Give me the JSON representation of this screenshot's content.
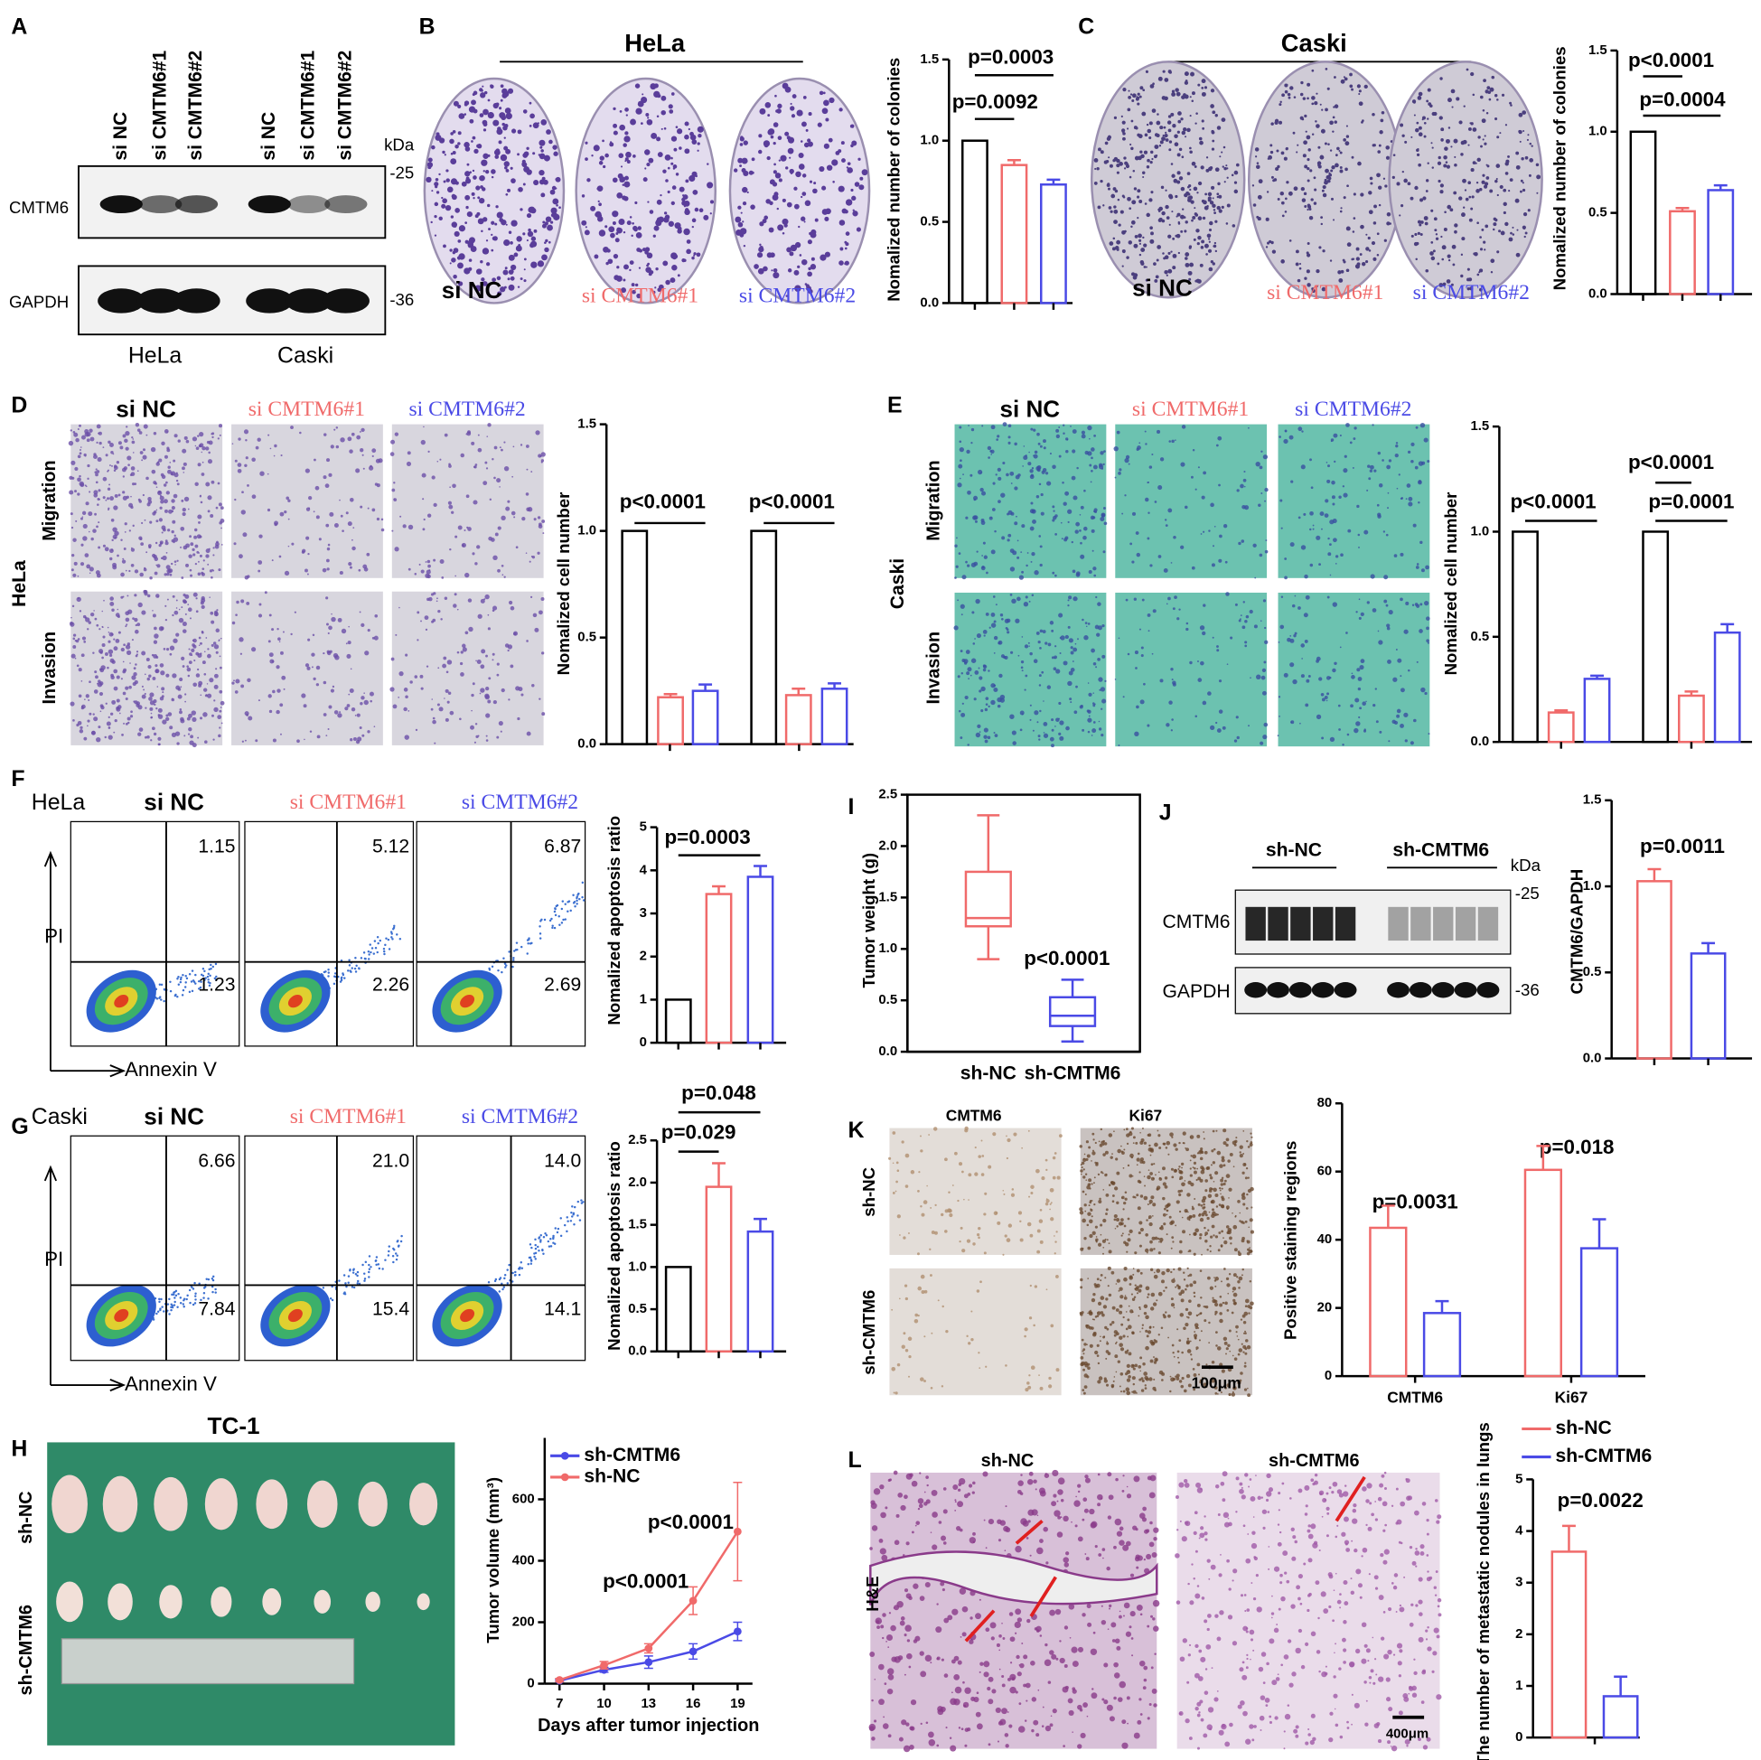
{
  "chart_data": [
    {
      "type": "bar",
      "values": [
        1.0,
        0.85,
        0.73
      ],
      "errors": [
        null,
        0.03,
        0.03
      ],
      "colors": [
        "#000000",
        "#f06a6a",
        "#4a4ae6"
      ],
      "ylim": [
        0,
        1.5
      ],
      "yticks": [
        {
          "value": 0,
          "label": "0.0"
        },
        0.5,
        {
          "value": 1,
          "label": "1.0"
        },
        1.5
      ],
      "ylabel": "Nomalized number of colonies",
      "annotations": [
        "p=0.0003",
        "p=0.0092"
      ]
    },
    {
      "type": "bar",
      "values": [
        1.0,
        0.51,
        0.64
      ],
      "errors": [
        null,
        0.02,
        0.03
      ],
      "colors": [
        "#000000",
        "#f06a6a",
        "#4a4ae6"
      ],
      "ylim": [
        0,
        1.5
      ],
      "yticks": [
        {
          "value": 0,
          "label": "0.0"
        },
        0.5,
        {
          "value": 1,
          "label": "1.0"
        },
        1.5
      ],
      "ylabel": "Nomalized number of colonies",
      "annotations": [
        "p<0.0001",
        "p=0.0004"
      ]
    },
    {
      "type": "bar",
      "series": [
        {
          "color": "#000000",
          "values": [
            1.0,
            1.0
          ],
          "errors": [
            null,
            null
          ]
        },
        {
          "color": "#f06a6a",
          "values": [
            0.22,
            0.23
          ],
          "errors": [
            0.015,
            0.03
          ]
        },
        {
          "color": "#4a4ae6",
          "values": [
            0.25,
            0.26
          ],
          "errors": [
            0.03,
            0.025
          ]
        }
      ],
      "ylim": [
        0,
        1.5
      ],
      "yticks": [
        {
          "value": 0,
          "label": "0.0"
        },
        0.5,
        {
          "value": 1,
          "label": "1.0"
        },
        1.5
      ],
      "ylabel": "Nomalized cell number",
      "annotations": [
        "p<0.0001",
        "p<0.0001"
      ]
    },
    {
      "type": "bar",
      "series": [
        {
          "color": "#000000",
          "values": [
            1.0,
            1.0
          ],
          "errors": [
            null,
            null
          ]
        },
        {
          "color": "#f06a6a",
          "values": [
            0.14,
            0.22
          ],
          "errors": [
            0.01,
            0.02
          ]
        },
        {
          "color": "#4a4ae6",
          "values": [
            0.3,
            0.52
          ],
          "errors": [
            0.015,
            0.04
          ]
        }
      ],
      "ylim": [
        0,
        1.5
      ],
      "yticks": [
        {
          "value": 0,
          "label": "0.0"
        },
        0.5,
        {
          "value": 1,
          "label": "1.0"
        },
        1.5
      ],
      "ylabel": "Nomalized cell number",
      "annotations": [
        "p<0.0001",
        "p<0.0001",
        "p=0.0001"
      ]
    },
    {
      "type": "bar",
      "values": [
        1.0,
        3.45,
        3.85
      ],
      "errors": [
        null,
        0.18,
        0.25
      ],
      "colors": [
        "#000000",
        "#f06a6a",
        "#4a4ae6"
      ],
      "ylim": [
        0,
        5
      ],
      "yticks": [
        0,
        1,
        2,
        3,
        4,
        5
      ],
      "ylabel": "Nomalized apoptosis ratio",
      "annotations": [
        "p=0.0003"
      ]
    },
    {
      "type": "bar",
      "values": [
        1.0,
        1.95,
        1.42
      ],
      "errors": [
        null,
        0.28,
        0.15
      ],
      "colors": [
        "#000000",
        "#f06a6a",
        "#4a4ae6"
      ],
      "ylim": [
        0,
        2.5
      ],
      "yticks": [
        {
          "value": 0,
          "label": "0.0"
        },
        0.5,
        {
          "value": 1,
          "label": "1.0"
        },
        1.5,
        {
          "value": 2,
          "label": "2.0"
        },
        2.5
      ],
      "ylabel": "Nomalized apoptosis ratio",
      "annotations": [
        "p=0.048",
        "p=0.029"
      ]
    },
    {
      "type": "box",
      "categories": [
        "sh-NC",
        "sh-CMTM6"
      ],
      "boxes": [
        {
          "color": "#f06a6a",
          "min": 0.9,
          "q1": 1.22,
          "median": 1.3,
          "q3": 1.75,
          "max": 2.3
        },
        {
          "color": "#4a4ae6",
          "min": 0.1,
          "q1": 0.25,
          "median": 0.35,
          "q3": 0.53,
          "max": 0.7
        }
      ],
      "ylim": [
        0,
        2.5
      ],
      "yticks": [
        {
          "value": 0,
          "label": "0.0"
        },
        0.5,
        {
          "value": 1,
          "label": "1.0"
        },
        1.5,
        {
          "value": 2,
          "label": "2.0"
        },
        2.5
      ],
      "ylabel": "Tumor weight (g)",
      "annotations": [
        "p<0.0001"
      ]
    },
    {
      "type": "bar",
      "values": [
        1.03,
        0.61
      ],
      "errors": [
        0.07,
        0.06
      ],
      "colors": [
        "#f06a6a",
        "#4a4ae6"
      ],
      "ylim": [
        0,
        1.5
      ],
      "yticks": [
        {
          "value": 0,
          "label": "0.0"
        },
        0.5,
        {
          "value": 1,
          "label": "1.0"
        },
        1.5
      ],
      "ylabel": "CMTM6/GAPDH",
      "annotations": [
        "p=0.0011"
      ]
    },
    {
      "type": "bar",
      "categories": [
        "CMTM6",
        "Ki67"
      ],
      "series": [
        {
          "color": "#f06a6a",
          "values": [
            43.5,
            60.5
          ],
          "errors": [
            6.5,
            7
          ]
        },
        {
          "color": "#4a4ae6",
          "values": [
            18.5,
            37.5
          ],
          "errors": [
            3.5,
            8.5
          ]
        }
      ],
      "ylim": [
        0,
        80
      ],
      "yticks": [
        0,
        20,
        40,
        60,
        80
      ],
      "ylabel": "Positive staining regions",
      "annotations": [
        "p=0.0031",
        "p=0.018"
      ]
    },
    {
      "type": "line",
      "x": [
        7,
        10,
        13,
        16,
        19
      ],
      "series": [
        {
          "name": "sh-CMTM6",
          "color": "#4a4ae6",
          "values": [
            10,
            45,
            70,
            105,
            170
          ],
          "errors": [
            3,
            8,
            20,
            25,
            30
          ]
        },
        {
          "name": "sh-NC",
          "color": "#f06a6a",
          "values": [
            12,
            60,
            115,
            270,
            495
          ],
          "errors": [
            5,
            12,
            15,
            45,
            160
          ]
        }
      ],
      "xlim": [
        6,
        20
      ],
      "xticks": [
        7,
        10,
        13,
        16,
        19
      ],
      "ylim": [
        0,
        800
      ],
      "yticks": [
        0,
        200,
        400,
        600
      ],
      "xlabel": "Days after tumor injection",
      "ylabel": "Tumor volume (mm³)",
      "legend": true,
      "annotations": [
        "p<0.0001",
        "p<0.0001"
      ]
    },
    {
      "type": "bar",
      "series": [
        {
          "name": "sh-NC",
          "color": "#f06a6a",
          "values": [
            3.6
          ],
          "errors": [
            0.5
          ]
        },
        {
          "name": "sh-CMTM6",
          "color": "#4a4ae6",
          "values": [
            0.8
          ],
          "errors": [
            0.38
          ]
        }
      ],
      "ylim": [
        0,
        5
      ],
      "yticks": [
        0,
        1,
        2,
        3,
        4,
        5
      ],
      "ylabel": "The number of metastatic nodules in lungs",
      "legend": true,
      "annotations": [
        "p=0.0022"
      ]
    }
  ],
  "figure": {
    "panels": [
      "A",
      "B",
      "C",
      "D",
      "E",
      "F",
      "G",
      "H",
      "I",
      "J",
      "K",
      "L"
    ],
    "a": {
      "lanes": [
        "si NC",
        "si CMTM6#1",
        "si CMTM6#2",
        "si NC",
        "si CMTM6#1",
        "si CMTM6#2"
      ],
      "kda": "kDa",
      "markers": [
        "-25",
        "-36"
      ],
      "proteins": [
        "CMTM6",
        "GAPDH"
      ],
      "cells": [
        "HeLa",
        "Caski"
      ]
    },
    "b": {
      "title": "HeLa",
      "labels": [
        "si NC",
        "si CMTM6#1",
        "si CMTM6#2"
      ]
    },
    "c": {
      "title": "Caski",
      "labels": [
        "si NC",
        "si CMTM6#1",
        "si CMTM6#2"
      ]
    },
    "d": {
      "labels": [
        "si NC",
        "si CMTM6#1",
        "si CMTM6#2"
      ],
      "rows": [
        "Migration",
        "Invasion"
      ],
      "cell": "HeLa"
    },
    "e": {
      "labels": [
        "si NC",
        "si CMTM6#1",
        "si CMTM6#2"
      ],
      "rows": [
        "Migration",
        "Invasion"
      ],
      "cell": "Caski"
    },
    "f": {
      "cell": "HeLa",
      "labels": [
        "si NC",
        "si CMTM6#1",
        "si CMTM6#2"
      ],
      "quadrants": [
        [
          "1.15",
          "1.23"
        ],
        [
          "5.12",
          "2.26"
        ],
        [
          "6.87",
          "2.69"
        ]
      ],
      "y": "PI",
      "x": "Annexin V"
    },
    "g": {
      "cell": "Caski",
      "labels": [
        "si NC",
        "si CMTM6#1",
        "si CMTM6#2"
      ],
      "quadrants": [
        [
          "6.66",
          "7.84"
        ],
        [
          "21.0",
          "15.4"
        ],
        [
          "14.0",
          "14.1"
        ]
      ],
      "y": "PI",
      "x": "Annexin V"
    },
    "h": {
      "title": "TC-1",
      "rows": [
        "sh-NC",
        "sh-CMTM6"
      ]
    },
    "j": {
      "groups": [
        "sh-NC",
        "sh-CMTM6"
      ],
      "kda": "kDa",
      "markers": [
        "-25",
        "-36"
      ],
      "proteins": [
        "CMTM6",
        "GAPDH"
      ]
    },
    "k": {
      "cols": [
        "CMTM6",
        "Ki67"
      ],
      "rows": [
        "sh-NC",
        "sh-CMTM6"
      ],
      "scale": "100μm"
    },
    "l": {
      "cols": [
        "sh-NC",
        "sh-CMTM6"
      ],
      "stain": "H&E",
      "scale": "400μm"
    }
  }
}
